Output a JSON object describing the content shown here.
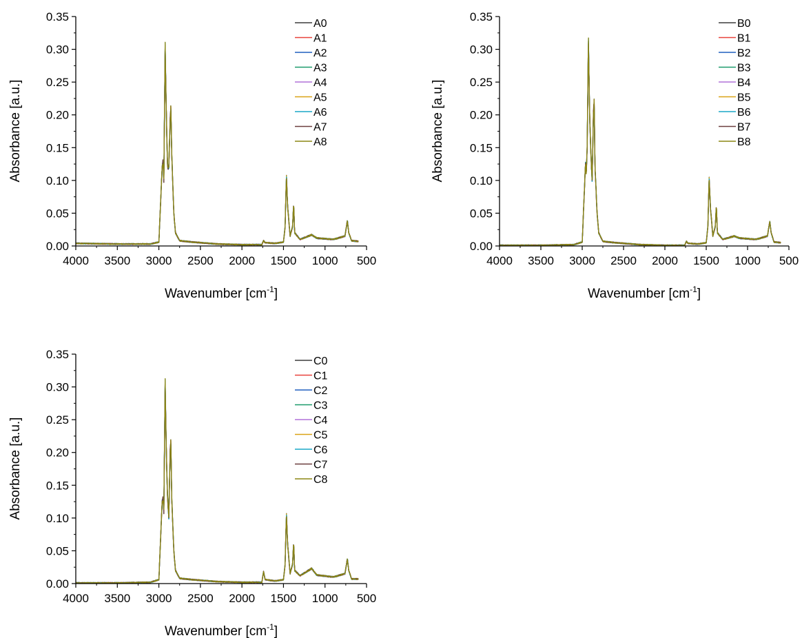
{
  "chart_data": [
    {
      "type": "line",
      "xlabel": "Wavenumber [cm",
      "xlabel_sup": "-1",
      "xlabel_end": "]",
      "ylabel": "Absorbance [a.u.]",
      "xlim": [
        4000,
        500
      ],
      "ylim": [
        0,
        0.35
      ],
      "xticks": [
        "4000",
        "3500",
        "3000",
        "2500",
        "2000",
        "1500",
        "1000",
        "500"
      ],
      "yticks": [
        "0.00",
        "0.05",
        "0.10",
        "0.15",
        "0.20",
        "0.25",
        "0.30",
        "0.35"
      ],
      "grid": false,
      "legend_position": "top-right",
      "series_names": [
        "A0",
        "A1",
        "A2",
        "A3",
        "A4",
        "A5",
        "A6",
        "A7",
        "A8"
      ],
      "profile": [
        [
          4000,
          0.004
        ],
        [
          3500,
          0.003
        ],
        [
          3100,
          0.003
        ],
        [
          3000,
          0.006
        ],
        [
          2960,
          0.12
        ],
        [
          2950,
          0.13
        ],
        [
          2940,
          0.1
        ],
        [
          2925,
          0.31
        ],
        [
          2910,
          0.2
        ],
        [
          2895,
          0.12
        ],
        [
          2880,
          0.12
        ],
        [
          2865,
          0.19
        ],
        [
          2855,
          0.21
        ],
        [
          2845,
          0.14
        ],
        [
          2820,
          0.05
        ],
        [
          2800,
          0.02
        ],
        [
          2750,
          0.008
        ],
        [
          2600,
          0.006
        ],
        [
          2300,
          0.003
        ],
        [
          2000,
          0.002
        ],
        [
          1760,
          0.002
        ],
        [
          1740,
          0.008
        ],
        [
          1720,
          0.005
        ],
        [
          1600,
          0.004
        ],
        [
          1500,
          0.006
        ],
        [
          1480,
          0.03
        ],
        [
          1465,
          0.108
        ],
        [
          1450,
          0.06
        ],
        [
          1420,
          0.015
        ],
        [
          1390,
          0.03
        ],
        [
          1378,
          0.065
        ],
        [
          1365,
          0.02
        ],
        [
          1300,
          0.01
        ],
        [
          1160,
          0.017
        ],
        [
          1100,
          0.012
        ],
        [
          900,
          0.01
        ],
        [
          760,
          0.015
        ],
        [
          730,
          0.039
        ],
        [
          715,
          0.02
        ],
        [
          680,
          0.008
        ],
        [
          600,
          0.007
        ]
      ]
    },
    {
      "type": "line",
      "xlabel": "Wavenumber [cm",
      "xlabel_sup": "-1",
      "xlabel_end": "]",
      "ylabel": "Absorbance [a.u.]",
      "xlim": [
        4000,
        500
      ],
      "ylim": [
        0,
        0.35
      ],
      "xticks": [
        "4000",
        "3500",
        "3000",
        "2500",
        "2000",
        "1500",
        "1000",
        "500"
      ],
      "yticks": [
        "0.00",
        "0.05",
        "0.10",
        "0.15",
        "0.20",
        "0.25",
        "0.30",
        "0.35"
      ],
      "grid": false,
      "legend_position": "top-right",
      "series_names": [
        "B0",
        "B1",
        "B2",
        "B3",
        "B4",
        "B5",
        "B6",
        "B7",
        "B8"
      ],
      "profile": [
        [
          4000,
          0.001
        ],
        [
          3500,
          0.001
        ],
        [
          3100,
          0.002
        ],
        [
          3000,
          0.006
        ],
        [
          2960,
          0.125
        ],
        [
          2950,
          0.11
        ],
        [
          2940,
          0.15
        ],
        [
          2925,
          0.317
        ],
        [
          2910,
          0.2
        ],
        [
          2895,
          0.14
        ],
        [
          2880,
          0.1
        ],
        [
          2865,
          0.2
        ],
        [
          2855,
          0.22
        ],
        [
          2845,
          0.12
        ],
        [
          2820,
          0.05
        ],
        [
          2800,
          0.02
        ],
        [
          2750,
          0.007
        ],
        [
          2600,
          0.005
        ],
        [
          2300,
          0.002
        ],
        [
          2000,
          0.001
        ],
        [
          1760,
          0.001
        ],
        [
          1740,
          0.007
        ],
        [
          1720,
          0.004
        ],
        [
          1600,
          0.003
        ],
        [
          1500,
          0.005
        ],
        [
          1480,
          0.03
        ],
        [
          1465,
          0.105
        ],
        [
          1450,
          0.06
        ],
        [
          1420,
          0.015
        ],
        [
          1390,
          0.03
        ],
        [
          1378,
          0.062
        ],
        [
          1365,
          0.02
        ],
        [
          1300,
          0.01
        ],
        [
          1160,
          0.015
        ],
        [
          1100,
          0.012
        ],
        [
          900,
          0.01
        ],
        [
          760,
          0.015
        ],
        [
          730,
          0.038
        ],
        [
          715,
          0.02
        ],
        [
          680,
          0.006
        ],
        [
          600,
          0.005
        ]
      ]
    },
    {
      "type": "line",
      "xlabel": "Wavenumber [cm",
      "xlabel_sup": "-1",
      "xlabel_end": "]",
      "ylabel": "Absorbance [a.u.]",
      "xlim": [
        4000,
        500
      ],
      "ylim": [
        0,
        0.35
      ],
      "xticks": [
        "4000",
        "3500",
        "3000",
        "2500",
        "2000",
        "1500",
        "1000",
        "500"
      ],
      "yticks": [
        "0.00",
        "0.05",
        "0.10",
        "0.15",
        "0.20",
        "0.25",
        "0.30",
        "0.35"
      ],
      "grid": false,
      "legend_position": "top-right",
      "series_names": [
        "C0",
        "C1",
        "C2",
        "C3",
        "C4",
        "C5",
        "C6",
        "C7",
        "C8"
      ],
      "profile": [
        [
          4000,
          0.001
        ],
        [
          3500,
          0.001
        ],
        [
          3100,
          0.002
        ],
        [
          3000,
          0.006
        ],
        [
          2960,
          0.125
        ],
        [
          2950,
          0.13
        ],
        [
          2940,
          0.11
        ],
        [
          2925,
          0.312
        ],
        [
          2910,
          0.2
        ],
        [
          2895,
          0.13
        ],
        [
          2880,
          0.1
        ],
        [
          2865,
          0.2
        ],
        [
          2855,
          0.215
        ],
        [
          2845,
          0.13
        ],
        [
          2820,
          0.05
        ],
        [
          2800,
          0.02
        ],
        [
          2750,
          0.008
        ],
        [
          2600,
          0.006
        ],
        [
          2300,
          0.003
        ],
        [
          2000,
          0.002
        ],
        [
          1760,
          0.002
        ],
        [
          1740,
          0.018
        ],
        [
          1720,
          0.006
        ],
        [
          1600,
          0.004
        ],
        [
          1500,
          0.006
        ],
        [
          1480,
          0.03
        ],
        [
          1465,
          0.107
        ],
        [
          1450,
          0.06
        ],
        [
          1420,
          0.015
        ],
        [
          1390,
          0.03
        ],
        [
          1378,
          0.063
        ],
        [
          1365,
          0.02
        ],
        [
          1300,
          0.012
        ],
        [
          1160,
          0.023
        ],
        [
          1100,
          0.013
        ],
        [
          900,
          0.01
        ],
        [
          760,
          0.015
        ],
        [
          730,
          0.038
        ],
        [
          715,
          0.02
        ],
        [
          680,
          0.007
        ],
        [
          600,
          0.007
        ]
      ]
    }
  ],
  "series_colors": [
    "#3c3c3c",
    "#e8413a",
    "#1f5fbf",
    "#1a9a6a",
    "#b070d8",
    "#d9a214",
    "#19a7c7",
    "#6a3d3d",
    "#8c8612"
  ]
}
